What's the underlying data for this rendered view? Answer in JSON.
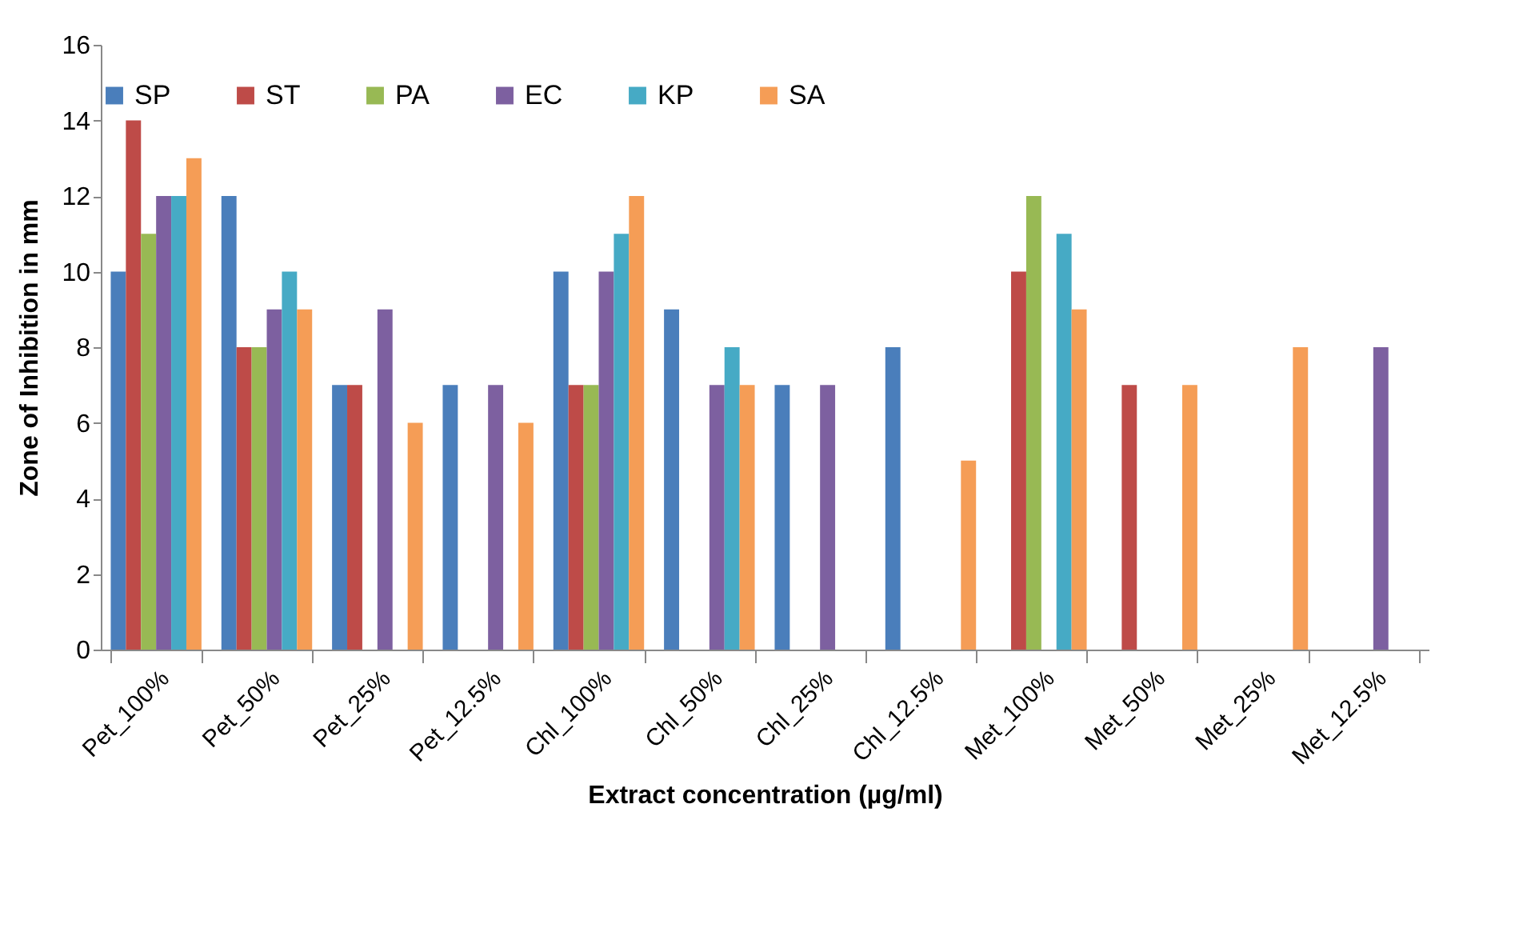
{
  "chart_data": {
    "type": "bar",
    "xlabel": "Extract concentration (µg/ml)",
    "ylabel": "Zone of Inhibition in mm",
    "categories": [
      "Pet_100%",
      "Pet_50%",
      "Pet_25%",
      "Pet_12.5%",
      "Chl_100%",
      "Chl_50%",
      "Chl_25%",
      "Chl_12.5%",
      "Met_100%",
      "Met_50%",
      "Met_25%",
      "Met_12.5%"
    ],
    "series": [
      {
        "name": "SP",
        "color": "#4a7ebb",
        "values": [
          10,
          12,
          7,
          7,
          10,
          9,
          7,
          8,
          null,
          null,
          null,
          null
        ]
      },
      {
        "name": "ST",
        "color": "#be4b48",
        "values": [
          14,
          8,
          7,
          null,
          7,
          null,
          null,
          null,
          10,
          7,
          null,
          null
        ]
      },
      {
        "name": "PA",
        "color": "#98b954",
        "values": [
          11,
          8,
          null,
          null,
          7,
          null,
          null,
          null,
          12,
          null,
          null,
          null
        ]
      },
      {
        "name": "EC",
        "color": "#7d60a0",
        "values": [
          12,
          9,
          9,
          7,
          10,
          7,
          7,
          null,
          null,
          null,
          null,
          8
        ]
      },
      {
        "name": "KP",
        "color": "#46aac5",
        "values": [
          12,
          10,
          null,
          null,
          11,
          8,
          null,
          null,
          11,
          null,
          null,
          null
        ]
      },
      {
        "name": "SA",
        "color": "#f59d56",
        "values": [
          13,
          9,
          6,
          6,
          12,
          7,
          null,
          5,
          9,
          7,
          8,
          null
        ]
      }
    ],
    "ylim": [
      0,
      16
    ],
    "yticks": [
      0,
      2,
      4,
      6,
      8,
      10,
      12,
      14,
      16
    ],
    "grid": false,
    "legend": "top"
  }
}
